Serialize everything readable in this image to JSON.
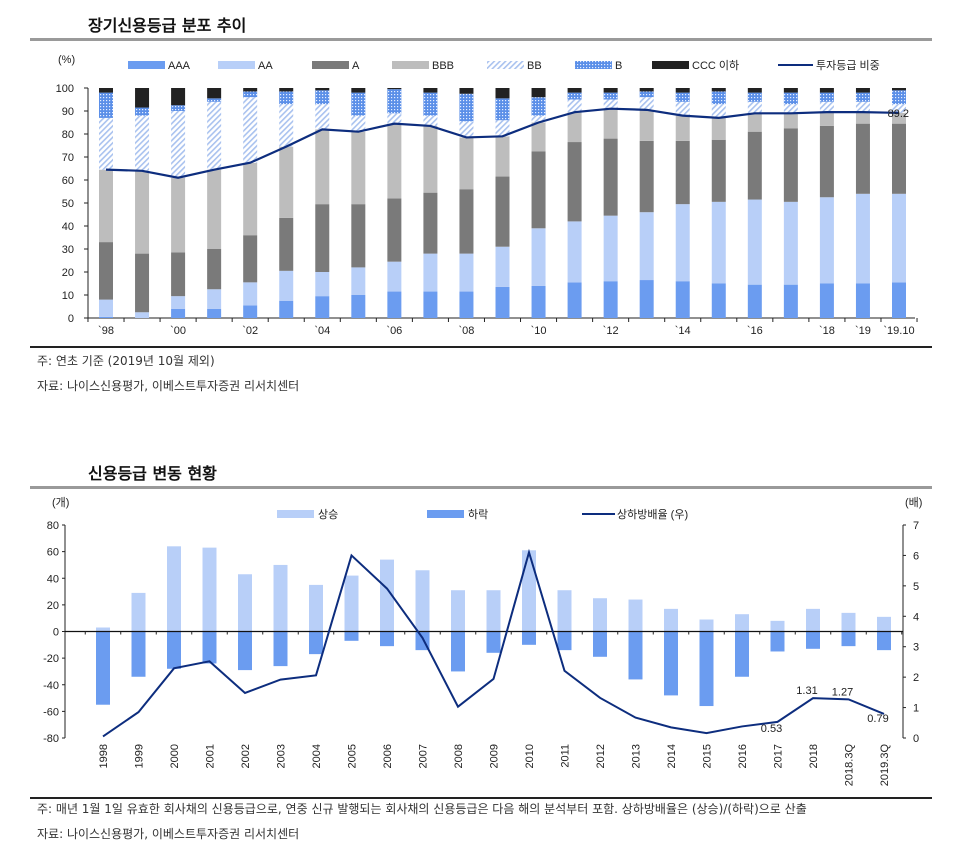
{
  "section1": {
    "title": "장기신용등급 분포 추이",
    "note": "주: 연초 기준 (2019년 10월 제외)",
    "source": "자료: 나이스신용평가, 이베스트투자증권 리서치센터"
  },
  "section2": {
    "title": "신용등급 변동 현황",
    "note": "주: 매년 1월 1일 유효한 회사채의 신용등급으로, 연중 신규 발행되는 회사채의 신용등급은 다음 해의 분석부터 포함. 상하방배율은 (상승)/(하락)으로 산출",
    "source": "자료: 나이스신용평가, 이베스트투자증권 리서치센터"
  },
  "chart_data": [
    {
      "type": "bar",
      "stacked": true,
      "yunit": "(%)",
      "ylim": [
        0,
        100
      ],
      "yticks": [
        0,
        10,
        20,
        30,
        40,
        50,
        60,
        70,
        80,
        90,
        100
      ],
      "x_tick_labels": [
        "`98",
        "",
        "`00",
        "",
        "`02",
        "",
        "`04",
        "",
        "`06",
        "",
        "`08",
        "",
        "`10",
        "",
        "`12",
        "",
        "`14",
        "",
        "`16",
        "",
        "`18",
        "`19",
        "`19.10"
      ],
      "legend_position": "top",
      "series": [
        {
          "name": "AAA",
          "color": "#6b9cf0",
          "pattern": "solid",
          "values": [
            0.5,
            0,
            4,
            4,
            5.5,
            7.5,
            9.5,
            10,
            11.5,
            11.5,
            11.5,
            13.5,
            14,
            15.5,
            16,
            16.5,
            16,
            15,
            14.5,
            14.5,
            15,
            15,
            15.5
          ]
        },
        {
          "name": "AA",
          "color": "#b8cff8",
          "pattern": "solid",
          "values": [
            7.5,
            2.5,
            5.5,
            8.5,
            10,
            13,
            10.5,
            12,
            13,
            16.5,
            16.5,
            17.5,
            25,
            26.5,
            28.5,
            29.5,
            33.5,
            35.5,
            37,
            36,
            37.5,
            39,
            38.5
          ]
        },
        {
          "name": "A",
          "color": "#7a7a7a",
          "pattern": "solid",
          "values": [
            25,
            25.5,
            19,
            17.5,
            20.5,
            23,
            29.5,
            27.5,
            27.5,
            26.5,
            28,
            30.5,
            33.5,
            34.5,
            33.5,
            31,
            27.5,
            27,
            29.5,
            32,
            31,
            30.5,
            30.5
          ]
        },
        {
          "name": "BBB",
          "color": "#bdbdbd",
          "pattern": "solid",
          "values": [
            31.5,
            36,
            32.5,
            34.5,
            31.5,
            31,
            32.5,
            31.5,
            32.5,
            29,
            22.5,
            17.5,
            12.5,
            13,
            13,
            13.5,
            11,
            9.5,
            8,
            6.5,
            6,
            5,
            4.7
          ]
        },
        {
          "name": "BB",
          "color": "#a9c2ef",
          "pattern": "hatch",
          "values": [
            22.5,
            24,
            29,
            29.5,
            28.5,
            18.5,
            11,
            7,
            4.5,
            4.5,
            7,
            7,
            3,
            5.5,
            4,
            5.5,
            6,
            6,
            5,
            4,
            4.5,
            4.5,
            3.8
          ]
        },
        {
          "name": "B",
          "color": "#5b8fe8",
          "pattern": "dots",
          "values": [
            11,
            3.5,
            2.5,
            1.5,
            2.5,
            5.5,
            6,
            10,
            10.5,
            10,
            12,
            9.5,
            8,
            3,
            3,
            2.5,
            4,
            5.5,
            4,
            5,
            4,
            4,
            6
          ]
        },
        {
          "name": "CCC 이하",
          "color": "#222222",
          "pattern": "solid",
          "values": [
            2,
            8.5,
            7.5,
            4.5,
            1.5,
            1.5,
            1,
            2,
            0.5,
            2,
            2.5,
            4.5,
            4,
            2,
            2,
            1.5,
            2,
            1.5,
            2,
            2,
            2,
            2,
            1
          ]
        }
      ],
      "line": {
        "name": "투자등급 비중",
        "color": "#0d2d7e",
        "values": [
          64.5,
          64,
          61,
          64.5,
          67.5,
          74.5,
          82,
          81,
          84.5,
          83.5,
          78.5,
          79,
          85,
          89.5,
          91,
          90.5,
          88,
          87,
          89,
          89,
          89.5,
          89.5,
          89.2
        ],
        "end_label": "89.2"
      }
    },
    {
      "type": "bar",
      "categories": [
        "1998",
        "1999",
        "2000",
        "2001",
        "2002",
        "2003",
        "2004",
        "2005",
        "2006",
        "2007",
        "2008",
        "2009",
        "2010",
        "2011",
        "2012",
        "2013",
        "2014",
        "2015",
        "2016",
        "2017",
        "2018",
        "2018.3Q",
        "2019.3Q"
      ],
      "yunit_left": "(개)",
      "yunit_right": "(배)",
      "ylim": [
        -80,
        80
      ],
      "yticks": [
        -80,
        -60,
        -40,
        -20,
        0,
        20,
        40,
        60,
        80
      ],
      "y2lim": [
        0,
        7
      ],
      "y2ticks": [
        0,
        1,
        2,
        3,
        4,
        5,
        6,
        7
      ],
      "legend_position": "top",
      "series": [
        {
          "name": "상승",
          "color": "#b8cff8",
          "values": [
            3,
            29,
            64,
            63,
            43,
            50,
            35,
            42,
            54,
            46,
            31,
            31,
            61,
            31,
            25,
            24,
            17,
            9,
            13,
            8,
            17,
            14,
            11
          ]
        },
        {
          "name": "하락",
          "color": "#6b9cf0",
          "values": [
            -55,
            -34,
            -28,
            -24,
            -29,
            -26,
            -17,
            -7,
            -11,
            -14,
            -30,
            -16,
            -10,
            -14,
            -19,
            -36,
            -48,
            -56,
            -34,
            -15,
            -13,
            -11,
            -14
          ]
        }
      ],
      "line": {
        "name": "상하방배율 (우)",
        "color": "#0d2d7e",
        "axis": "right",
        "values": [
          0.05,
          0.85,
          2.29,
          2.52,
          1.48,
          1.92,
          2.06,
          6.0,
          4.91,
          3.29,
          1.03,
          1.94,
          6.1,
          2.21,
          1.32,
          0.67,
          0.35,
          0.16,
          0.38,
          0.53,
          1.31,
          1.27,
          0.79
        ],
        "data_labels": [
          "",
          "",
          "",
          "",
          "",
          "",
          "",
          "",
          "",
          "",
          "",
          "",
          "",
          "",
          "",
          "",
          "",
          "",
          "",
          "0.53",
          "1.31",
          "1.27",
          "0.79"
        ]
      }
    }
  ]
}
